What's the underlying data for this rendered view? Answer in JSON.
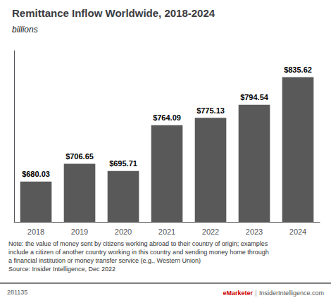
{
  "chart_data": {
    "type": "bar",
    "title": "Remittance Inflow Worldwide, 2018-2024",
    "subtitle": "billions",
    "categories": [
      "2018",
      "2019",
      "2020",
      "2021",
      "2022",
      "2023",
      "2024"
    ],
    "values": [
      680.03,
      706.65,
      695.71,
      764.09,
      775.13,
      794.54,
      835.62
    ],
    "value_labels": [
      "$680.03",
      "$706.65",
      "$695.71",
      "$764.09",
      "$775.13",
      "$794.54",
      "$835.62"
    ],
    "color": "#595959",
    "ylim": [
      620,
      875
    ],
    "grid": false,
    "data_labels": true,
    "tick_labels": "x",
    "annotations": [
      "Note: the value of money sent by citizens working abroad to their country of origin; examples\ninclude a citizen of another country working in this country and sending money home through\na financial institution or money transfer service (e.g., Western Union)\nSource: Insider Intelligence, Dec 2022",
      "281135",
      "eMarketer",
      "|",
      "InsiderIntelligence.com"
    ]
  }
}
